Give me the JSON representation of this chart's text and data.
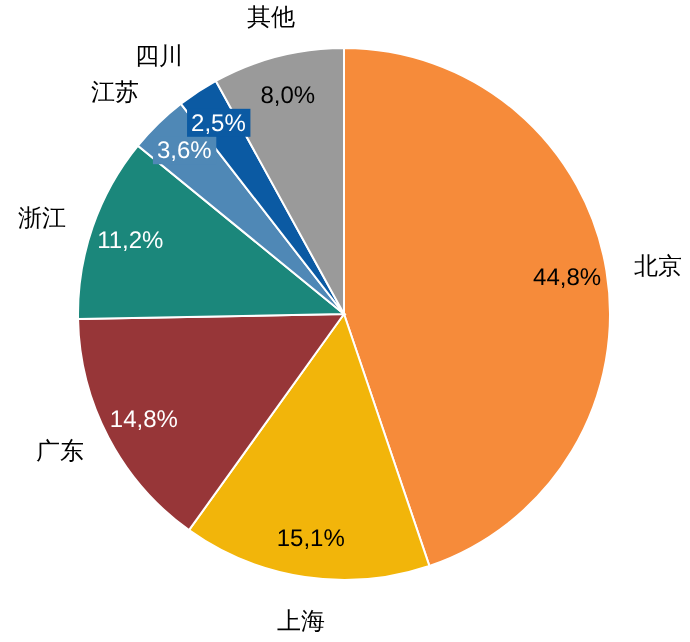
{
  "chart_data": {
    "type": "pie",
    "categories": [
      "北京",
      "上海",
      "广东",
      "浙江",
      "江苏",
      "四川",
      "其他"
    ],
    "values": [
      44.8,
      15.1,
      14.8,
      11.2,
      3.6,
      2.5,
      8.0
    ],
    "value_labels": [
      "44,8%",
      "15,1%",
      "14,8%",
      "11,2%",
      "3,6%",
      "2,5%",
      "8,0%"
    ],
    "colors": [
      "#f68b3a",
      "#f2b50a",
      "#973638",
      "#1b877b",
      "#4f88b6",
      "#0b5aa3",
      "#9a9a9a"
    ]
  }
}
